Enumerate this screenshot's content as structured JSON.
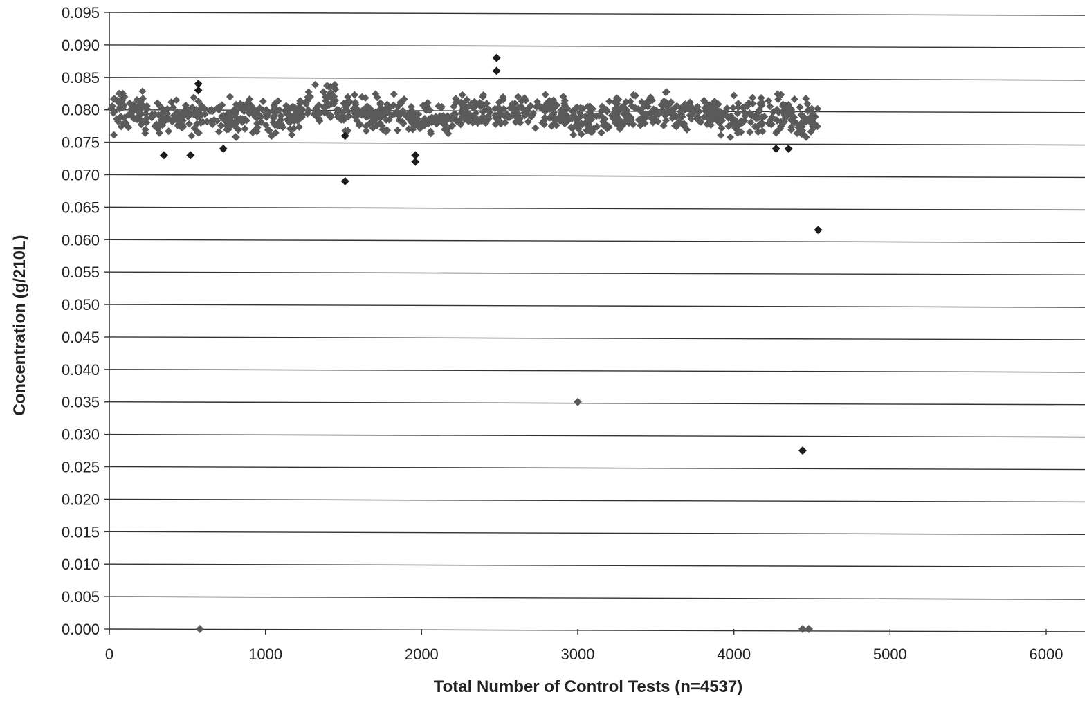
{
  "chart_data": {
    "type": "scatter",
    "title": "",
    "xlabel": "Total Number of Control Tests (n=4537)",
    "ylabel": "Concentration (g/210L)",
    "xlim": [
      0,
      6000
    ],
    "ylim": [
      0,
      0.095
    ],
    "x_ticks": [
      "0",
      "1000",
      "2000",
      "3000",
      "4000",
      "5000",
      "6000"
    ],
    "y_ticks": [
      "0.000",
      "0.005",
      "0.010",
      "0.015",
      "0.020",
      "0.025",
      "0.030",
      "0.035",
      "0.040",
      "0.045",
      "0.050",
      "0.055",
      "0.060",
      "0.065",
      "0.070",
      "0.075",
      "0.080",
      "0.085",
      "0.090",
      "0.095"
    ],
    "grid": "horizontal",
    "legend": "none",
    "marker": "diamond",
    "colors": {
      "dense": "#5a5a5a",
      "outlier": "#1c1c1c",
      "grid": "#333333",
      "axis": "#333333"
    },
    "band": {
      "description": "dense cluster of control test results",
      "segments": [
        {
          "x_start": 0,
          "x_end": 300,
          "y_center": 0.0795,
          "y_spread": 0.003
        },
        {
          "x_start": 300,
          "x_end": 1250,
          "y_center": 0.079,
          "y_spread": 0.0025
        },
        {
          "x_start": 1250,
          "x_end": 1450,
          "y_center": 0.081,
          "y_spread": 0.003
        },
        {
          "x_start": 1450,
          "x_end": 1900,
          "y_center": 0.0795,
          "y_spread": 0.0025
        },
        {
          "x_start": 1900,
          "x_end": 2200,
          "y_center": 0.0785,
          "y_spread": 0.002
        },
        {
          "x_start": 2200,
          "x_end": 2950,
          "y_center": 0.0795,
          "y_spread": 0.0025
        },
        {
          "x_start": 2950,
          "x_end": 3200,
          "y_center": 0.0785,
          "y_spread": 0.0025
        },
        {
          "x_start": 3200,
          "x_end": 3900,
          "y_center": 0.0795,
          "y_spread": 0.0025
        },
        {
          "x_start": 3900,
          "x_end": 4537,
          "y_center": 0.079,
          "y_spread": 0.003
        }
      ]
    },
    "series": [
      {
        "points": [
          {
            "x": 350,
            "y": 0.073
          },
          {
            "x": 520,
            "y": 0.073
          },
          {
            "x": 570,
            "y": 0.084
          },
          {
            "x": 570,
            "y": 0.083
          },
          {
            "x": 730,
            "y": 0.074
          },
          {
            "x": 1510,
            "y": 0.076
          },
          {
            "x": 1510,
            "y": 0.069
          },
          {
            "x": 1960,
            "y": 0.073
          },
          {
            "x": 1960,
            "y": 0.072
          },
          {
            "x": 2480,
            "y": 0.088
          },
          {
            "x": 2480,
            "y": 0.086
          },
          {
            "x": 4270,
            "y": 0.074
          },
          {
            "x": 4350,
            "y": 0.074
          },
          {
            "x": 4540,
            "y": 0.0615
          },
          {
            "x": 4440,
            "y": 0.0275
          },
          {
            "x": 3000,
            "y": 0.035
          },
          {
            "x": 580,
            "y": 0.0
          },
          {
            "x": 4440,
            "y": 0.0
          },
          {
            "x": 4480,
            "y": 0.0
          }
        ]
      }
    ]
  }
}
